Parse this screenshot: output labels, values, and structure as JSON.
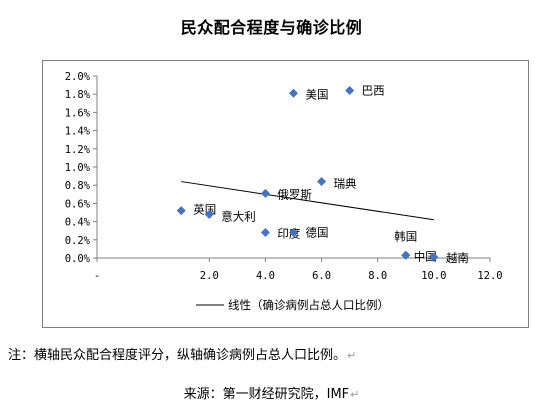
{
  "page": {
    "note": "注：横轴民众配合程度评分，纵轴确诊病例占总人口比例。",
    "source": "来源：第一财经研究院，IMF"
  },
  "chart_data": {
    "type": "scatter",
    "title": "民众配合程度与确诊比例",
    "xlabel": "",
    "ylabel": "",
    "xlim": [
      -2,
      12
    ],
    "ylim": [
      0,
      0.02
    ],
    "x_ticks": [
      -2,
      2,
      4,
      6,
      8,
      10,
      12
    ],
    "x_tick_labels": [
      "-",
      "2.0",
      "4.0",
      "6.0",
      "8.0",
      "10.0",
      "12.0"
    ],
    "y_ticks": [
      0,
      0.002,
      0.004,
      0.006,
      0.008,
      0.01,
      0.012,
      0.014,
      0.016,
      0.018,
      0.02
    ],
    "y_tick_labels": [
      "0.0%",
      "0.2%",
      "0.4%",
      "0.6%",
      "0.8%",
      "1.0%",
      "1.2%",
      "1.4%",
      "1.6%",
      "1.8%",
      "2.0%"
    ],
    "marker_color": "#4472c4",
    "trend_color": "#000000",
    "points": [
      {
        "label": "美国",
        "x": 5,
        "y": 0.0181
      },
      {
        "label": "巴西",
        "x": 7,
        "y": 0.0184
      },
      {
        "label": "瑞典",
        "x": 6,
        "y": 0.0084
      },
      {
        "label": "俄罗斯",
        "x": 4,
        "y": 0.0071
      },
      {
        "label": "英国",
        "x": 1,
        "y": 0.0052
      },
      {
        "label": "意大利",
        "x": 2,
        "y": 0.0048
      },
      {
        "label": "印度",
        "x": 4,
        "y": 0.0028
      },
      {
        "label": "德国",
        "x": 5,
        "y": 0.0028
      },
      {
        "label": "韩国",
        "x": 9,
        "y": 0.0003
      },
      {
        "label": "中国",
        "x": 9,
        "y": 0.0003
      },
      {
        "label": "越南",
        "x": 10,
        "y": 0.0001
      }
    ],
    "trendline": {
      "name": "线性（确诊病例占总人口比例）",
      "x": [
        1,
        10
      ],
      "y": [
        0.0084,
        0.0042
      ]
    },
    "legend": {
      "position": "bottom",
      "label": "线性（确诊病例占总人口比例）"
    }
  }
}
